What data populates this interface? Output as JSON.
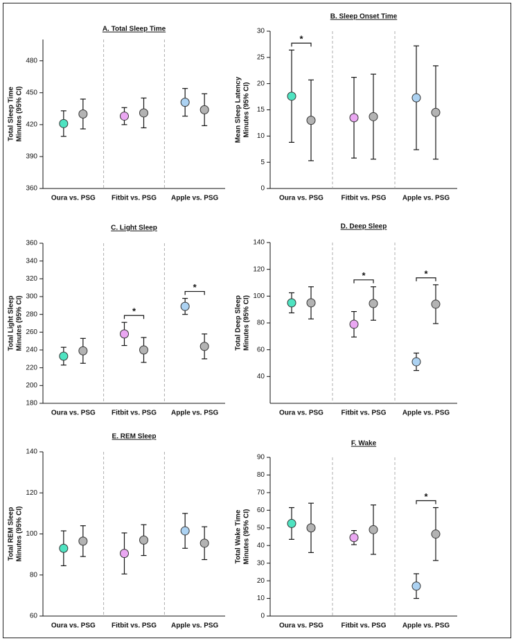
{
  "chart_data": [
    {
      "type": "errorbar",
      "title": "A. Total Sleep Time",
      "ylabel": [
        "Total Sleep Time",
        "Minutes (95% CI)"
      ],
      "categories": [
        "Oura vs. PSG",
        "Fitbit vs. PSG",
        "Apple vs. PSG"
      ],
      "series": [
        {
          "colors": [
            "#4fe3c1",
            "#eaa7f2",
            "#acd2f2"
          ],
          "values": [
            421,
            428,
            441
          ],
          "errors": [
            12,
            8,
            13
          ]
        },
        {
          "color": "#b3b3b3",
          "values": [
            430,
            431,
            434
          ],
          "errors": [
            14,
            14,
            15
          ]
        }
      ],
      "ylim": [
        360,
        500
      ],
      "yticks": [
        360,
        390,
        420,
        450,
        480
      ],
      "significance": []
    },
    {
      "type": "errorbar",
      "title": "B. Sleep Onset Time",
      "ylabel": [
        "Mean Sleep Latency",
        "Minutes (95% CI)"
      ],
      "categories": [
        "Oura vs. PSG",
        "Fitbit vs. PSG",
        "Apple vs. PSG"
      ],
      "series": [
        {
          "colors": [
            "#4fe3c1",
            "#eaa7f2",
            "#acd2f2"
          ],
          "values": [
            17.6,
            13.5,
            17.3
          ],
          "errors": [
            8.8,
            7.7,
            9.9
          ]
        },
        {
          "color": "#b3b3b3",
          "values": [
            13,
            13.7,
            14.5
          ],
          "errors": [
            7.7,
            8.1,
            8.9
          ]
        }
      ],
      "ylim": [
        0,
        30
      ],
      "yticks": [
        0,
        5,
        10,
        15,
        20,
        25,
        30
      ],
      "significance": [
        {
          "label": "*",
          "category": 0
        }
      ]
    },
    {
      "type": "errorbar",
      "title": "C. Light Sleep",
      "ylabel": [
        "Total Light Sleep",
        "Minutes (95% CI)"
      ],
      "categories": [
        "Oura vs. PSG",
        "Fitbit vs. PSG",
        "Apple vs. PSG"
      ],
      "series": [
        {
          "colors": [
            "#4fe3c1",
            "#eaa7f2",
            "#acd2f2"
          ],
          "values": [
            233,
            258,
            289
          ],
          "errors": [
            10,
            13,
            9
          ]
        },
        {
          "color": "#b3b3b3",
          "values": [
            239,
            240,
            244
          ],
          "errors": [
            14,
            14,
            14
          ]
        }
      ],
      "ylim": [
        180,
        360
      ],
      "yticks": [
        180,
        200,
        220,
        240,
        260,
        280,
        300,
        320,
        340,
        360
      ],
      "significance": [
        {
          "label": "*",
          "category": 1
        },
        {
          "label": "*",
          "category": 2
        }
      ]
    },
    {
      "type": "errorbar",
      "title": "D. Deep Sleep",
      "ylabel": [
        "Total Deep Sleep",
        "Minutes (95% CI)"
      ],
      "categories": [
        "Oura vs. PSG",
        "Fitbit vs. PSG",
        "Apple vs. PSG"
      ],
      "series": [
        {
          "colors": [
            "#4fe3c1",
            "#eaa7f2",
            "#acd2f2"
          ],
          "values": [
            95,
            79,
            51
          ],
          "errors": [
            7.5,
            9.5,
            6.5
          ]
        },
        {
          "color": "#b3b3b3",
          "values": [
            95,
            94.5,
            94
          ],
          "errors": [
            12,
            12.5,
            14.5
          ]
        }
      ],
      "ylim": [
        20,
        140
      ],
      "yticks": [
        40,
        60,
        80,
        100,
        120,
        140
      ],
      "significance": [
        {
          "label": "*",
          "category": 1
        },
        {
          "label": "*",
          "category": 2
        }
      ]
    },
    {
      "type": "errorbar",
      "title": "E. REM Sleep",
      "ylabel": [
        "Total REM Sleep",
        "Minutes (95% CI)"
      ],
      "categories": [
        "Oura vs. PSG",
        "Fitbit vs. PSG",
        "Apple vs. PSG"
      ],
      "series": [
        {
          "colors": [
            "#4fe3c1",
            "#eaa7f2",
            "#acd2f2"
          ],
          "values": [
            93,
            90.5,
            101.5
          ],
          "errors": [
            8.5,
            10,
            8.5
          ]
        },
        {
          "color": "#b3b3b3",
          "values": [
            96.5,
            97,
            95.5
          ],
          "errors": [
            7.5,
            7.5,
            8
          ]
        }
      ],
      "ylim": [
        60,
        140
      ],
      "yticks": [
        60,
        80,
        100,
        120,
        140
      ],
      "significance": []
    },
    {
      "type": "errorbar",
      "title": "F. Wake",
      "ylabel": [
        "Total Wake Time",
        "Minutes (95% CI)"
      ],
      "categories": [
        "Oura vs. PSG",
        "Fitbit vs. PSG",
        "Apple vs. PSG"
      ],
      "series": [
        {
          "colors": [
            "#4fe3c1",
            "#eaa7f2",
            "#acd2f2"
          ],
          "values": [
            52.5,
            44.5,
            17
          ],
          "errors": [
            9,
            4,
            7
          ]
        },
        {
          "color": "#b3b3b3",
          "values": [
            50,
            49,
            46.5
          ],
          "errors": [
            14,
            14,
            15
          ]
        }
      ],
      "ylim": [
        0,
        90
      ],
      "yticks": [
        0,
        10,
        20,
        30,
        40,
        50,
        60,
        70,
        80,
        90
      ],
      "significance": [
        {
          "label": "*",
          "category": 2
        }
      ]
    }
  ]
}
